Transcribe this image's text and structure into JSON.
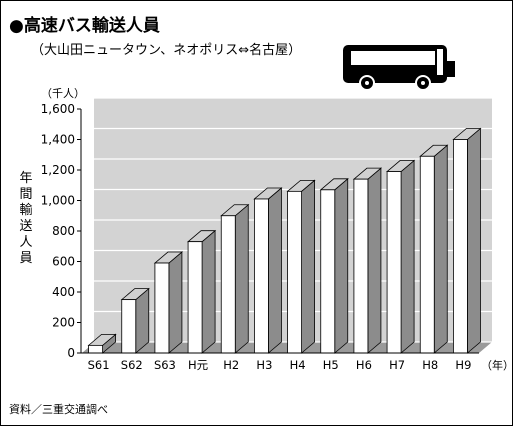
{
  "title": "●高速バス輸送人員",
  "subtitle": "（大山田ニュータウン、ネオポリス⇔名古屋）",
  "source": "資料／三重交通調べ",
  "icons": [
    "bus-icon"
  ],
  "colors": {
    "bar_face": "#ffffff",
    "bar_side": "#8c8c8c",
    "bar_top": "#d0d0d0",
    "wall": "#d3d3d3",
    "floor": "#9a9a9a"
  },
  "chart_data": {
    "type": "bar",
    "title": "高速バス輸送人員",
    "ylabel": "年間輸送人員",
    "yunit": "（千人）",
    "xunit": "（年）",
    "categories": [
      "S61",
      "S62",
      "S63",
      "H元",
      "H2",
      "H3",
      "H4",
      "H5",
      "H6",
      "H7",
      "H8",
      "H9"
    ],
    "values": [
      50,
      350,
      590,
      730,
      900,
      1010,
      1060,
      1070,
      1140,
      1190,
      1290,
      1400
    ],
    "ylim": [
      0,
      1600
    ],
    "yticks": [
      0,
      200,
      400,
      600,
      800,
      "1,000",
      "1,200",
      "1,400",
      "1,600"
    ],
    "ytick_values": [
      0,
      200,
      400,
      600,
      800,
      1000,
      1200,
      1400,
      1600
    ],
    "grid": true,
    "style": "3d-bar"
  }
}
